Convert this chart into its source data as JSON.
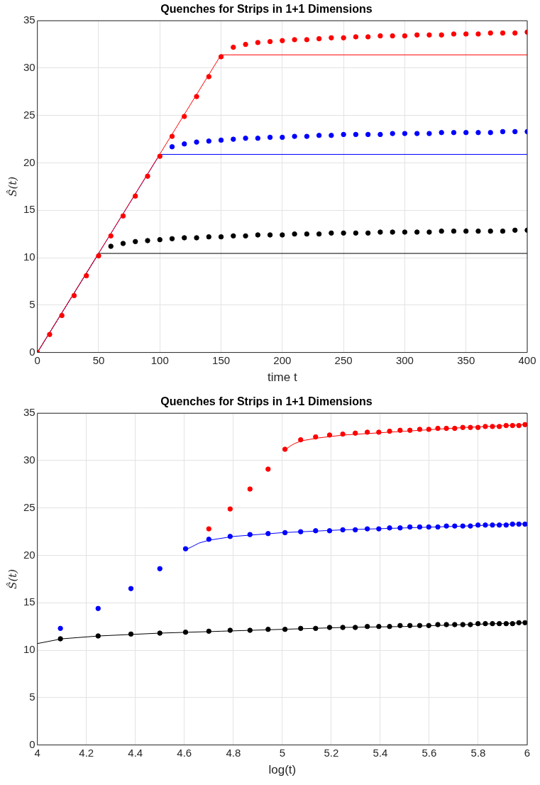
{
  "chart_data": [
    {
      "type": "scatter",
      "title": "Quenches for Strips in 1+1 Dimensions",
      "xlabel": "time t",
      "ylabel": "Ŝ(t)",
      "xlim": [
        0,
        400
      ],
      "xticks": [
        0,
        50,
        100,
        150,
        200,
        250,
        300,
        350,
        400
      ],
      "ylim": [
        0,
        35
      ],
      "yticks": [
        0,
        5,
        10,
        15,
        20,
        25,
        30,
        35
      ],
      "grid": true,
      "legend": false,
      "series": [
        {
          "type": "line",
          "color": "#000000",
          "marker": "none",
          "x": [
            0,
            50,
            400
          ],
          "values": [
            0,
            10.45,
            10.45
          ]
        },
        {
          "type": "line",
          "color": "#0000ff",
          "marker": "none",
          "x": [
            0,
            100,
            400
          ],
          "values": [
            0,
            20.9,
            20.9
          ]
        },
        {
          "type": "line",
          "color": "#ff0000",
          "marker": "none",
          "x": [
            0,
            150,
            400
          ],
          "values": [
            0,
            31.4,
            31.4
          ]
        },
        {
          "type": "scatter",
          "color": "#000000",
          "marker": "circle",
          "x": [
            60,
            70,
            80,
            90,
            100,
            110,
            120,
            130,
            140,
            150,
            160,
            170,
            180,
            190,
            200,
            210,
            220,
            230,
            240,
            250,
            260,
            270,
            280,
            290,
            300,
            310,
            320,
            330,
            340,
            350,
            360,
            370,
            380,
            390,
            400
          ],
          "values": [
            11.2,
            11.5,
            11.7,
            11.8,
            11.9,
            12.0,
            12.1,
            12.1,
            12.2,
            12.2,
            12.3,
            12.3,
            12.4,
            12.4,
            12.4,
            12.5,
            12.5,
            12.5,
            12.6,
            12.6,
            12.6,
            12.6,
            12.7,
            12.7,
            12.7,
            12.7,
            12.7,
            12.8,
            12.8,
            12.8,
            12.8,
            12.8,
            12.8,
            12.9,
            12.9
          ]
        },
        {
          "type": "scatter",
          "color": "#0000ff",
          "marker": "circle",
          "x": [
            110,
            120,
            130,
            140,
            150,
            160,
            170,
            180,
            190,
            200,
            210,
            220,
            230,
            240,
            250,
            260,
            270,
            280,
            290,
            300,
            310,
            320,
            330,
            340,
            350,
            360,
            370,
            380,
            390,
            400
          ],
          "values": [
            21.7,
            22.0,
            22.2,
            22.3,
            22.4,
            22.5,
            22.6,
            22.6,
            22.7,
            22.7,
            22.8,
            22.8,
            22.9,
            22.9,
            23.0,
            23.0,
            23.0,
            23.0,
            23.1,
            23.1,
            23.1,
            23.1,
            23.2,
            23.2,
            23.2,
            23.2,
            23.2,
            23.3,
            23.3,
            23.3
          ]
        },
        {
          "type": "scatter",
          "color": "#ff0000",
          "marker": "circle",
          "x": [
            0,
            10,
            20,
            30,
            40,
            50,
            60,
            70,
            80,
            90,
            100,
            110,
            120,
            130,
            140,
            150,
            160,
            170,
            180,
            190,
            200,
            210,
            220,
            230,
            240,
            250,
            260,
            270,
            280,
            290,
            300,
            310,
            320,
            330,
            340,
            350,
            360,
            370,
            380,
            390,
            400
          ],
          "values": [
            0,
            1.9,
            3.9,
            6.0,
            8.1,
            10.2,
            12.3,
            14.4,
            16.5,
            18.6,
            20.7,
            22.8,
            24.9,
            27.0,
            29.1,
            31.2,
            32.2,
            32.5,
            32.7,
            32.8,
            32.9,
            33.0,
            33.0,
            33.1,
            33.2,
            33.2,
            33.3,
            33.3,
            33.4,
            33.4,
            33.4,
            33.5,
            33.5,
            33.5,
            33.6,
            33.6,
            33.6,
            33.7,
            33.7,
            33.7,
            33.8
          ]
        }
      ]
    },
    {
      "type": "scatter",
      "title": "Quenches for Strips in 1+1 Dimensions",
      "xlabel": "log(t)",
      "ylabel": "Ŝ(t)",
      "xlim": [
        4,
        6
      ],
      "xticks": [
        4,
        4.2,
        4.4,
        4.6,
        4.8,
        5,
        5.2,
        5.4,
        5.6,
        5.8,
        6
      ],
      "ylim": [
        0,
        35
      ],
      "yticks": [
        0,
        5,
        10,
        15,
        20,
        25,
        30,
        35
      ],
      "grid": true,
      "legend": false,
      "series": [
        {
          "type": "line",
          "color": "#000000",
          "marker": "none",
          "x": [
            4,
            4.1,
            4.25,
            4.5,
            4.75,
            5,
            5.25,
            5.5,
            5.75,
            6
          ],
          "values": [
            10.7,
            11.2,
            11.5,
            11.8,
            12.0,
            12.2,
            12.4,
            12.5,
            12.7,
            12.9
          ]
        },
        {
          "type": "line",
          "color": "#0000ff",
          "marker": "none",
          "x": [
            4.605,
            4.63,
            4.66,
            4.7,
            4.8,
            4.9,
            5,
            5.25,
            5.5,
            5.75,
            6
          ],
          "values": [
            20.6,
            20.9,
            21.3,
            21.6,
            22.0,
            22.2,
            22.4,
            22.7,
            22.9,
            23.1,
            23.35
          ]
        },
        {
          "type": "line",
          "color": "#ff0000",
          "marker": "none",
          "x": [
            5.011,
            5.03,
            5.05,
            5.08,
            5.15,
            5.25,
            5.5,
            5.75,
            6
          ],
          "values": [
            31.1,
            31.5,
            31.8,
            32.1,
            32.4,
            32.7,
            33.1,
            33.5,
            33.8
          ]
        },
        {
          "type": "scatter",
          "color": "#000000",
          "marker": "circle",
          "x": [
            4.094,
            4.248,
            4.382,
            4.5,
            4.605,
            4.7,
            4.787,
            4.868,
            4.942,
            5.011,
            5.075,
            5.136,
            5.193,
            5.247,
            5.298,
            5.347,
            5.394,
            5.438,
            5.481,
            5.521,
            5.561,
            5.598,
            5.635,
            5.67,
            5.704,
            5.737,
            5.768,
            5.799,
            5.829,
            5.858,
            5.886,
            5.914,
            5.94,
            5.966,
            5.991
          ],
          "values": [
            11.2,
            11.5,
            11.7,
            11.8,
            11.9,
            12.0,
            12.1,
            12.1,
            12.2,
            12.2,
            12.3,
            12.3,
            12.4,
            12.4,
            12.4,
            12.5,
            12.5,
            12.5,
            12.6,
            12.6,
            12.6,
            12.6,
            12.7,
            12.7,
            12.7,
            12.7,
            12.7,
            12.8,
            12.8,
            12.8,
            12.8,
            12.8,
            12.8,
            12.9,
            12.9
          ]
        },
        {
          "type": "scatter",
          "color": "#0000ff",
          "marker": "circle",
          "x": [
            4.094,
            4.248,
            4.382,
            4.5,
            4.605,
            4.7,
            4.787,
            4.868,
            4.942,
            5.011,
            5.075,
            5.136,
            5.193,
            5.247,
            5.298,
            5.347,
            5.394,
            5.438,
            5.481,
            5.521,
            5.561,
            5.598,
            5.635,
            5.67,
            5.704,
            5.737,
            5.768,
            5.799,
            5.829,
            5.858,
            5.886,
            5.914,
            5.94,
            5.966,
            5.991
          ],
          "values": [
            12.3,
            14.4,
            16.5,
            18.6,
            20.7,
            21.7,
            22.0,
            22.2,
            22.3,
            22.4,
            22.5,
            22.6,
            22.6,
            22.7,
            22.7,
            22.8,
            22.8,
            22.9,
            22.9,
            23.0,
            23.0,
            23.0,
            23.0,
            23.1,
            23.1,
            23.1,
            23.1,
            23.2,
            23.2,
            23.2,
            23.2,
            23.2,
            23.3,
            23.3,
            23.3
          ]
        },
        {
          "type": "scatter",
          "color": "#ff0000",
          "marker": "circle",
          "x": [
            4.7,
            4.787,
            4.868,
            4.942,
            5.011,
            5.075,
            5.136,
            5.193,
            5.247,
            5.298,
            5.347,
            5.394,
            5.438,
            5.481,
            5.521,
            5.561,
            5.598,
            5.635,
            5.67,
            5.704,
            5.737,
            5.768,
            5.799,
            5.829,
            5.858,
            5.886,
            5.914,
            5.94,
            5.966,
            5.991
          ],
          "values": [
            22.8,
            24.9,
            27.0,
            29.1,
            31.2,
            32.2,
            32.5,
            32.7,
            32.8,
            32.9,
            33.0,
            33.0,
            33.1,
            33.2,
            33.2,
            33.3,
            33.3,
            33.4,
            33.4,
            33.4,
            33.5,
            33.5,
            33.5,
            33.6,
            33.6,
            33.6,
            33.7,
            33.7,
            33.7,
            33.8
          ]
        }
      ]
    }
  ]
}
